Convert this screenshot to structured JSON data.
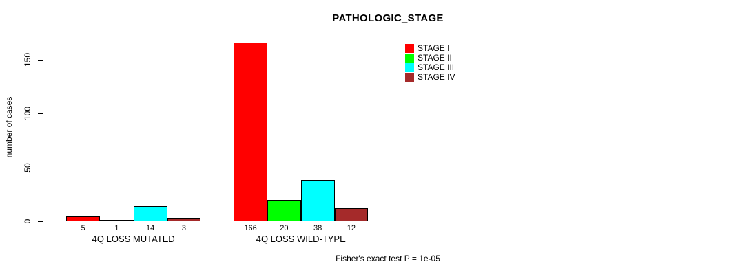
{
  "title": "PATHOLOGIC_STAGE",
  "footer": "Fisher's exact test P = 1e-05",
  "chart_data": {
    "type": "bar",
    "title": "PATHOLOGIC_STAGE",
    "xlabel": "",
    "ylabel": "number of cases",
    "ylim": [
      0,
      166
    ],
    "yticks": [
      0,
      50,
      100,
      150
    ],
    "grid": false,
    "legend_position": "top-right",
    "categories": [
      "4Q LOSS MUTATED",
      "4Q LOSS WILD-TYPE"
    ],
    "series": [
      {
        "name": "STAGE I",
        "color": "#ff0000",
        "values": [
          5,
          166
        ]
      },
      {
        "name": "STAGE II",
        "color": "#00ff00",
        "values": [
          1,
          20
        ]
      },
      {
        "name": "STAGE III",
        "color": "#00ffff",
        "values": [
          14,
          38
        ]
      },
      {
        "name": "STAGE IV",
        "color": "#a52a2a",
        "values": [
          3,
          12
        ]
      }
    ],
    "bar_value_labels": [
      [
        "5",
        "1",
        "14",
        "3"
      ],
      [
        "166",
        "20",
        "38",
        "12"
      ]
    ],
    "annotation": "Fisher's exact test P = 1e-05"
  }
}
